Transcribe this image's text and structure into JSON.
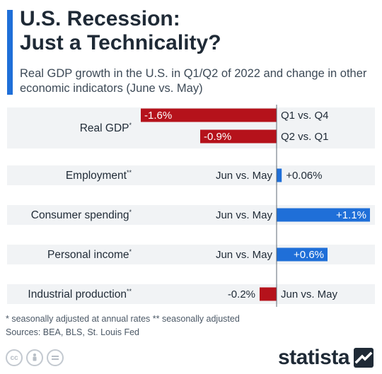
{
  "header": {
    "title": "U.S. Recession:\nJust a Technicality?",
    "subtitle": "Real GDP growth in the U.S. in Q1/Q2 of 2022 and change in other economic indicators (June vs. May)"
  },
  "colors": {
    "accent": "#1f6fd8",
    "negative": "#b5121b",
    "positive": "#1f6fd8",
    "row_band": "#f1f3f5"
  },
  "chart_data": {
    "type": "bar",
    "orientation": "horizontal",
    "baseline": 0,
    "rows": [
      {
        "label": "Real GDP*",
        "bars": [
          {
            "value": -1.6,
            "value_label": "-1.6%",
            "period": "Q1 vs. Q4"
          },
          {
            "value": -0.9,
            "value_label": "-0.9%",
            "period": "Q2 vs. Q1"
          }
        ]
      },
      {
        "label": "Employment**",
        "bars": [
          {
            "value": 0.06,
            "value_label": "+0.06%",
            "period": "Jun vs. May"
          }
        ]
      },
      {
        "label": "Consumer spending*",
        "bars": [
          {
            "value": 1.1,
            "value_label": "+1.1%",
            "period": "Jun vs. May"
          }
        ]
      },
      {
        "label": "Personal income*",
        "bars": [
          {
            "value": 0.6,
            "value_label": "+0.6%",
            "period": "Jun vs. May"
          }
        ]
      },
      {
        "label": "Industrial production**",
        "bars": [
          {
            "value": -0.2,
            "value_label": "-0.2%",
            "period": "Jun vs. May"
          }
        ]
      }
    ]
  },
  "footer": {
    "note": "* seasonally adjusted at annual rates    ** seasonally adjusted",
    "sources": "Sources: BEA, BLS, St. Louis Fed",
    "license_icons": [
      "cc-icon",
      "by-icon",
      "nd-icon"
    ],
    "brand": "statista"
  }
}
